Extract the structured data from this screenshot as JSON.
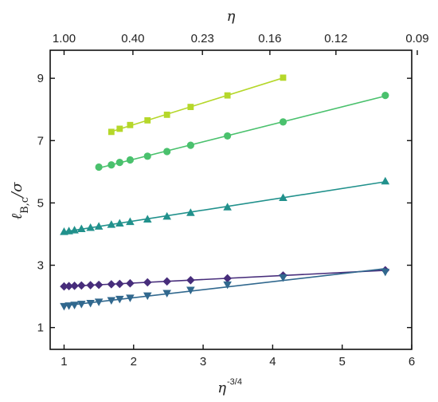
{
  "chart_data": {
    "type": "scatter",
    "x_axis": {
      "label": "η",
      "label_sup": "-3/4",
      "range": [
        0.8,
        6
      ],
      "ticks": [
        1,
        2,
        3,
        4,
        5,
        6
      ],
      "tick_labels": [
        "1",
        "2",
        "3",
        "4",
        "5",
        "6"
      ]
    },
    "y_axis": {
      "label": "ℓB,c/σ",
      "range": [
        0.3,
        9.9
      ],
      "ticks": [
        1,
        3,
        5,
        7,
        9
      ],
      "tick_labels": [
        "1",
        "3",
        "5",
        "7",
        "9"
      ]
    },
    "top_axis": {
      "label": "η",
      "tick_labels": [
        "1.00",
        "0.40",
        "0.23",
        "0.16",
        "0.12",
        "0.09"
      ],
      "tick_positions": [
        1,
        1.99,
        2.99,
        3.96,
        4.91,
        6.08
      ]
    },
    "grid": false,
    "series": [
      {
        "marker": "square",
        "color": "#b5d72a",
        "x": [
          1.68,
          1.8,
          1.95,
          2.2,
          2.48,
          2.82,
          3.35,
          4.15
        ],
        "y": [
          7.28,
          7.38,
          7.5,
          7.65,
          7.83,
          8.08,
          8.45,
          9.02
        ]
      },
      {
        "marker": "circle",
        "color": "#4ac16d",
        "x": [
          1.5,
          1.68,
          1.8,
          1.95,
          2.2,
          2.48,
          2.82,
          3.35,
          4.15,
          5.62
        ],
        "y": [
          6.15,
          6.22,
          6.3,
          6.38,
          6.5,
          6.65,
          6.85,
          7.15,
          7.6,
          8.45
        ]
      },
      {
        "marker": "triangle-up",
        "color": "#21918c",
        "x": [
          1.0,
          1.07,
          1.15,
          1.25,
          1.38,
          1.5,
          1.68,
          1.8,
          1.95,
          2.2,
          2.48,
          2.82,
          3.35,
          4.15,
          5.62
        ],
        "y": [
          4.08,
          4.1,
          4.13,
          4.17,
          4.21,
          4.25,
          4.31,
          4.35,
          4.4,
          4.48,
          4.57,
          4.69,
          4.87,
          5.17,
          5.7
        ]
      },
      {
        "marker": "diamond",
        "color": "#472d7b",
        "x": [
          1.0,
          1.07,
          1.15,
          1.25,
          1.38,
          1.5,
          1.68,
          1.8,
          1.95,
          2.2,
          2.48,
          2.82,
          3.35,
          4.15,
          5.62
        ],
        "y": [
          2.32,
          2.33,
          2.34,
          2.35,
          2.36,
          2.37,
          2.39,
          2.4,
          2.42,
          2.45,
          2.48,
          2.52,
          2.58,
          2.67,
          2.84
        ]
      },
      {
        "marker": "triangle-down",
        "color": "#31688e",
        "x": [
          1.0,
          1.07,
          1.15,
          1.25,
          1.38,
          1.5,
          1.68,
          1.8,
          1.95,
          2.2,
          2.48,
          2.82,
          3.35,
          4.15,
          5.62
        ],
        "y": [
          1.68,
          1.7,
          1.72,
          1.75,
          1.78,
          1.82,
          1.87,
          1.91,
          1.95,
          2.02,
          2.1,
          2.2,
          2.37,
          2.6,
          2.78
        ]
      }
    ]
  }
}
